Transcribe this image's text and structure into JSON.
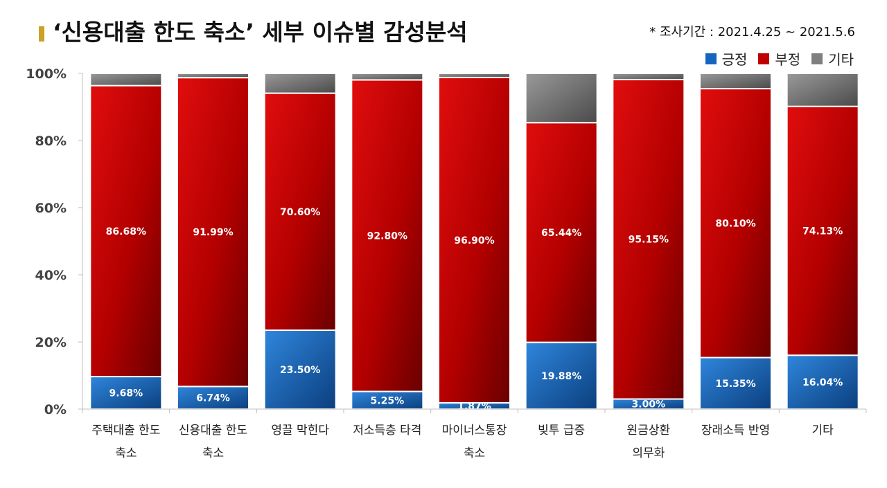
{
  "header": {
    "title": "‘신용대출 한도 축소’ 세부 이슈별 감성분석",
    "period": "* 조사기간 : 2021.4.25 ~ 2021.5.6"
  },
  "chart_data": {
    "type": "bar",
    "stacked": true,
    "percent_stacked": true,
    "title": "‘신용대출 한도 축소’ 세부 이슈별 감성분석",
    "categories": [
      "주택대출 한도 축소",
      "신용대출 한도 축소",
      "영끌 막힌다",
      "저소득층 타격",
      "마이너스통장 축소",
      "빚투 급증",
      "원금상환 의무화",
      "장래소득 반영",
      "기타"
    ],
    "category_lines": [
      [
        "주택대출 한도",
        "축소"
      ],
      [
        "신용대출 한도",
        "축소"
      ],
      [
        "영끌 막힌다"
      ],
      [
        "저소득층 타격"
      ],
      [
        "마이너스통장",
        "축소"
      ],
      [
        "빚투 급증"
      ],
      [
        "원금상환",
        "의무화"
      ],
      [
        "장래소득 반영"
      ],
      [
        "기타"
      ]
    ],
    "series": [
      {
        "name": "긍정",
        "color": "#1565c0",
        "values": [
          9.68,
          6.74,
          23.5,
          5.25,
          1.87,
          19.88,
          3.0,
          15.35,
          16.04
        ],
        "labels": [
          "9.68%",
          "6.74%",
          "23.50%",
          "5.25%",
          "1.87%",
          "19.88%",
          "3.00%",
          "15.35%",
          "16.04%"
        ]
      },
      {
        "name": "부정",
        "color": "#c00000",
        "values": [
          86.68,
          91.99,
          70.6,
          92.8,
          96.9,
          65.44,
          95.15,
          80.1,
          74.13
        ],
        "labels": [
          "86.68%",
          "91.99%",
          "70.60%",
          "92.80%",
          "96.90%",
          "65.44%",
          "95.15%",
          "80.10%",
          "74.13%"
        ]
      },
      {
        "name": "기타",
        "color": "#7f7f7f",
        "values": [
          3.64,
          1.27,
          5.9,
          1.95,
          1.23,
          14.68,
          1.85,
          4.55,
          9.83
        ]
      }
    ],
    "yticks": [
      "0%",
      "20%",
      "40%",
      "60%",
      "80%",
      "100%"
    ],
    "ylim": [
      0,
      100
    ],
    "legend_position": "top-right",
    "grid": false
  }
}
